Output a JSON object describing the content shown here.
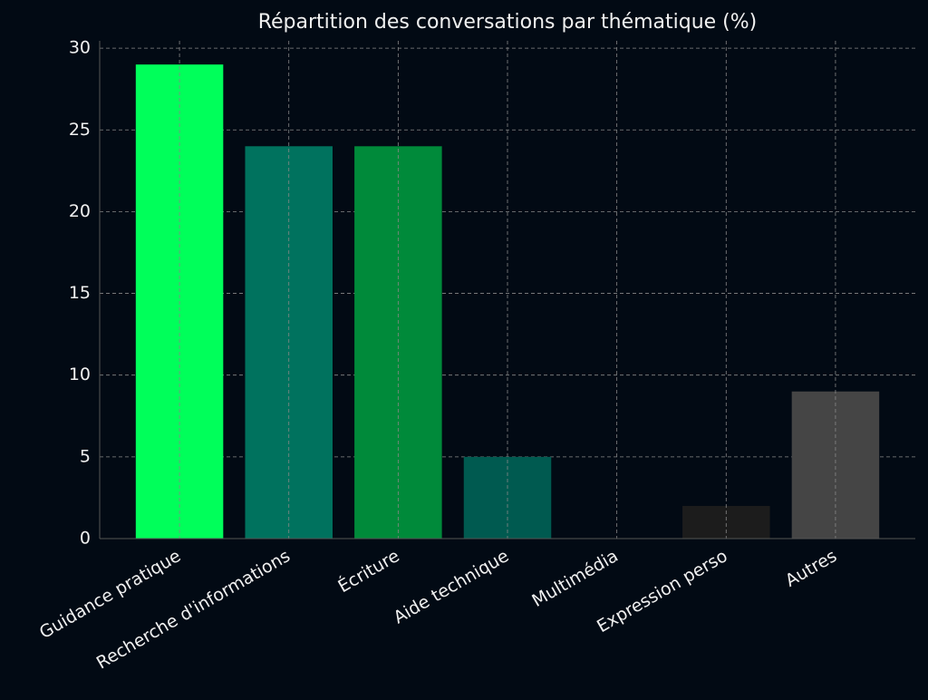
{
  "chart_data": {
    "type": "bar",
    "title": "Répartition des conversations par thématique (%)",
    "categories": [
      "Guidance pratique",
      "Recherche d'informations",
      "Écriture",
      "Aide technique",
      "Multimédia",
      "Expression perso",
      "Autres"
    ],
    "values": [
      29,
      24,
      24,
      5,
      0,
      2,
      9
    ],
    "colors": [
      "#00ff5a",
      "#00725e",
      "#008a3a",
      "#005a50",
      "#003d30",
      "#1c1c1c",
      "#454545"
    ],
    "ylim": [
      0,
      30.45
    ],
    "yticks": [
      0,
      5,
      10,
      15,
      20,
      25,
      30
    ],
    "grid": true
  }
}
